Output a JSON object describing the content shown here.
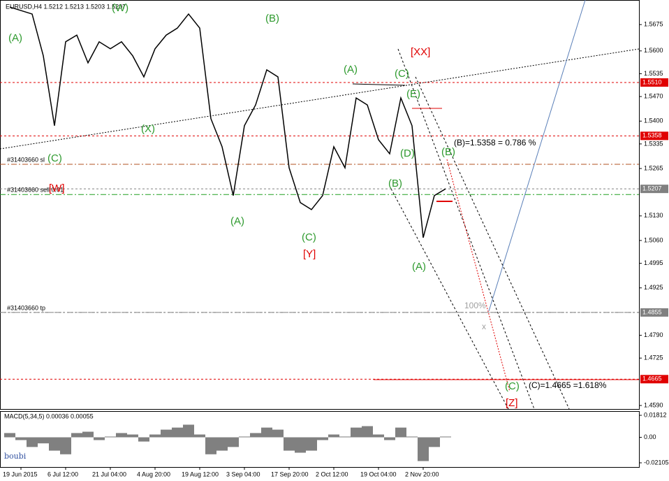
{
  "chart_data": [
    {
      "type": "line",
      "title": "EURUSD,H4 1.5212 1.5213 1.5203 1.5207",
      "categories": [
        null,
        "19 Jun 2015",
        null,
        null,
        null,
        "6 Jul 12:00",
        null,
        null,
        null,
        "21 Jul 04:00",
        null,
        null,
        null,
        "4 Aug 20:00",
        null,
        null,
        null,
        "19 Aug 12:00",
        null,
        null,
        null,
        "3 Sep 04:00",
        null,
        null,
        null,
        "17 Sep 20:00",
        null,
        null,
        null,
        "2 Oct 12:00",
        null,
        null,
        null,
        "19 Oct 04:00",
        null,
        null,
        null,
        "2 Nov 20:00",
        null,
        null
      ],
      "values": [
        1.5725,
        1.5715,
        1.5705,
        1.5586,
        1.5387,
        1.5626,
        1.5645,
        1.5566,
        1.5626,
        1.5606,
        1.5626,
        1.5586,
        1.5526,
        1.5606,
        1.5645,
        1.5665,
        1.5705,
        1.5665,
        1.5407,
        1.5327,
        1.5188,
        1.5387,
        1.5446,
        1.5546,
        1.5526,
        1.5267,
        1.5168,
        1.5148,
        1.5188,
        1.5327,
        1.5267,
        1.5466,
        1.5446,
        1.5347,
        1.5307,
        1.5466,
        1.5387,
        1.5068,
        1.5188,
        1.5207
      ],
      "color": "#000000",
      "ylim": [
        1.458,
        1.5745
      ],
      "yticks": [
        {
          "value": 1.5675,
          "label": "1.5675"
        },
        {
          "value": 1.56,
          "label": "1.5600"
        },
        {
          "value": 1.5535,
          "label": "1.5535"
        },
        {
          "value": 1.547,
          "label": "1.5470"
        },
        {
          "value": 1.54,
          "label": "1.5400"
        },
        {
          "value": 1.5335,
          "label": "1.5335"
        },
        {
          "value": 1.5265,
          "label": "1.5265"
        },
        {
          "value": 1.513,
          "label": "1.5130"
        },
        {
          "value": 1.506,
          "label": "1.5060"
        },
        {
          "value": 1.4995,
          "label": "1.4995"
        },
        {
          "value": 1.4925,
          "label": "1.4925"
        },
        {
          "value": 1.479,
          "label": "1.4790"
        },
        {
          "value": 1.4725,
          "label": "1.4725"
        },
        {
          "value": 1.459,
          "label": "1.4590"
        }
      ],
      "price_levels": [
        {
          "value": 1.551,
          "label": "1.5510",
          "color": "#e00000"
        },
        {
          "value": 1.5358,
          "label": "1.5358",
          "color": "#e00000"
        },
        {
          "value": 1.5207,
          "label": "1.5207",
          "color": "#808080"
        },
        {
          "value": 1.4855,
          "label": "1.4855",
          "color": "#808080"
        },
        {
          "value": 1.4665,
          "label": "1.4665",
          "color": "#e00000"
        }
      ],
      "orders": [
        {
          "name": "#31403660 sl",
          "value": 1.5277,
          "color": "#b05020"
        },
        {
          "name": "#31403660 sell 0.01",
          "value": 1.5191,
          "color": "#20a020"
        },
        {
          "name": "#31403660 tp",
          "value": 1.4855,
          "color": "#808080"
        }
      ],
      "annotations": [
        {
          "text": "(A)",
          "color": "#2e9a2e"
        },
        {
          "text": "(W)",
          "color": "#2e9a2e"
        },
        {
          "text": "(C)",
          "color": "#2e9a2e"
        },
        {
          "text": "(X)",
          "color": "#2e9a2e"
        },
        {
          "text": "(B)",
          "color": "#2e9a2e"
        },
        {
          "text": "(A)",
          "color": "#2e9a2e"
        },
        {
          "text": "(C)",
          "color": "#2e9a2e"
        },
        {
          "text": "(A)",
          "color": "#2e9a2e"
        },
        {
          "text": "(C)",
          "color": "#2e9a2e"
        },
        {
          "text": "(E)",
          "color": "#2e9a2e"
        },
        {
          "text": "(D)",
          "color": "#2e9a2e"
        },
        {
          "text": "(B)",
          "color": "#2e9a2e"
        },
        {
          "text": "(B)",
          "color": "#2e9a2e"
        },
        {
          "text": "(A)",
          "color": "#2e9a2e"
        },
        {
          "text": "(C)",
          "color": "#2e9a2e"
        },
        {
          "text": "[W]",
          "color": "#e00000"
        },
        {
          "text": "[Y]",
          "color": "#e00000"
        },
        {
          "text": "[XX]",
          "color": "#e00000"
        },
        {
          "text": "[Z]",
          "color": "#e00000"
        },
        {
          "text": "(B)=1.5358 = 0.786 %",
          "color": "#000000"
        },
        {
          "text": "(C)=1.4665 =1.618%",
          "color": "#000000"
        },
        {
          "text": "100%",
          "color": "#a0a0a0"
        },
        {
          "text": "x",
          "color": "#a0a0a0"
        }
      ]
    },
    {
      "type": "bar",
      "title": "MACD(5,34,5) 0.00036 0.00055",
      "author": "boubi",
      "values": [
        0.0035,
        -0.0023,
        -0.008,
        -0.005,
        -0.011,
        -0.014,
        0.0035,
        0.0046,
        -0.0023,
        0.0006,
        0.0035,
        0.0023,
        -0.0035,
        0.0023,
        0.0063,
        0.008,
        0.0104,
        0.0023,
        -0.014,
        -0.011,
        -0.008,
        0.0006,
        0.0035,
        0.008,
        0.0063,
        -0.011,
        -0.0127,
        -0.011,
        -0.0023,
        0.0023,
        0.0006,
        0.008,
        0.0092,
        0.0023,
        -0.0023,
        0.008,
        0.0006,
        -0.0196,
        -0.008,
        0.0006
      ],
      "color": "#808080",
      "ylim": [
        -0.0245,
        0.0216
      ],
      "yticks": [
        0.01812,
        {
          "value": 0,
          "label": "0.00"
        },
        -0.02105
      ]
    }
  ]
}
